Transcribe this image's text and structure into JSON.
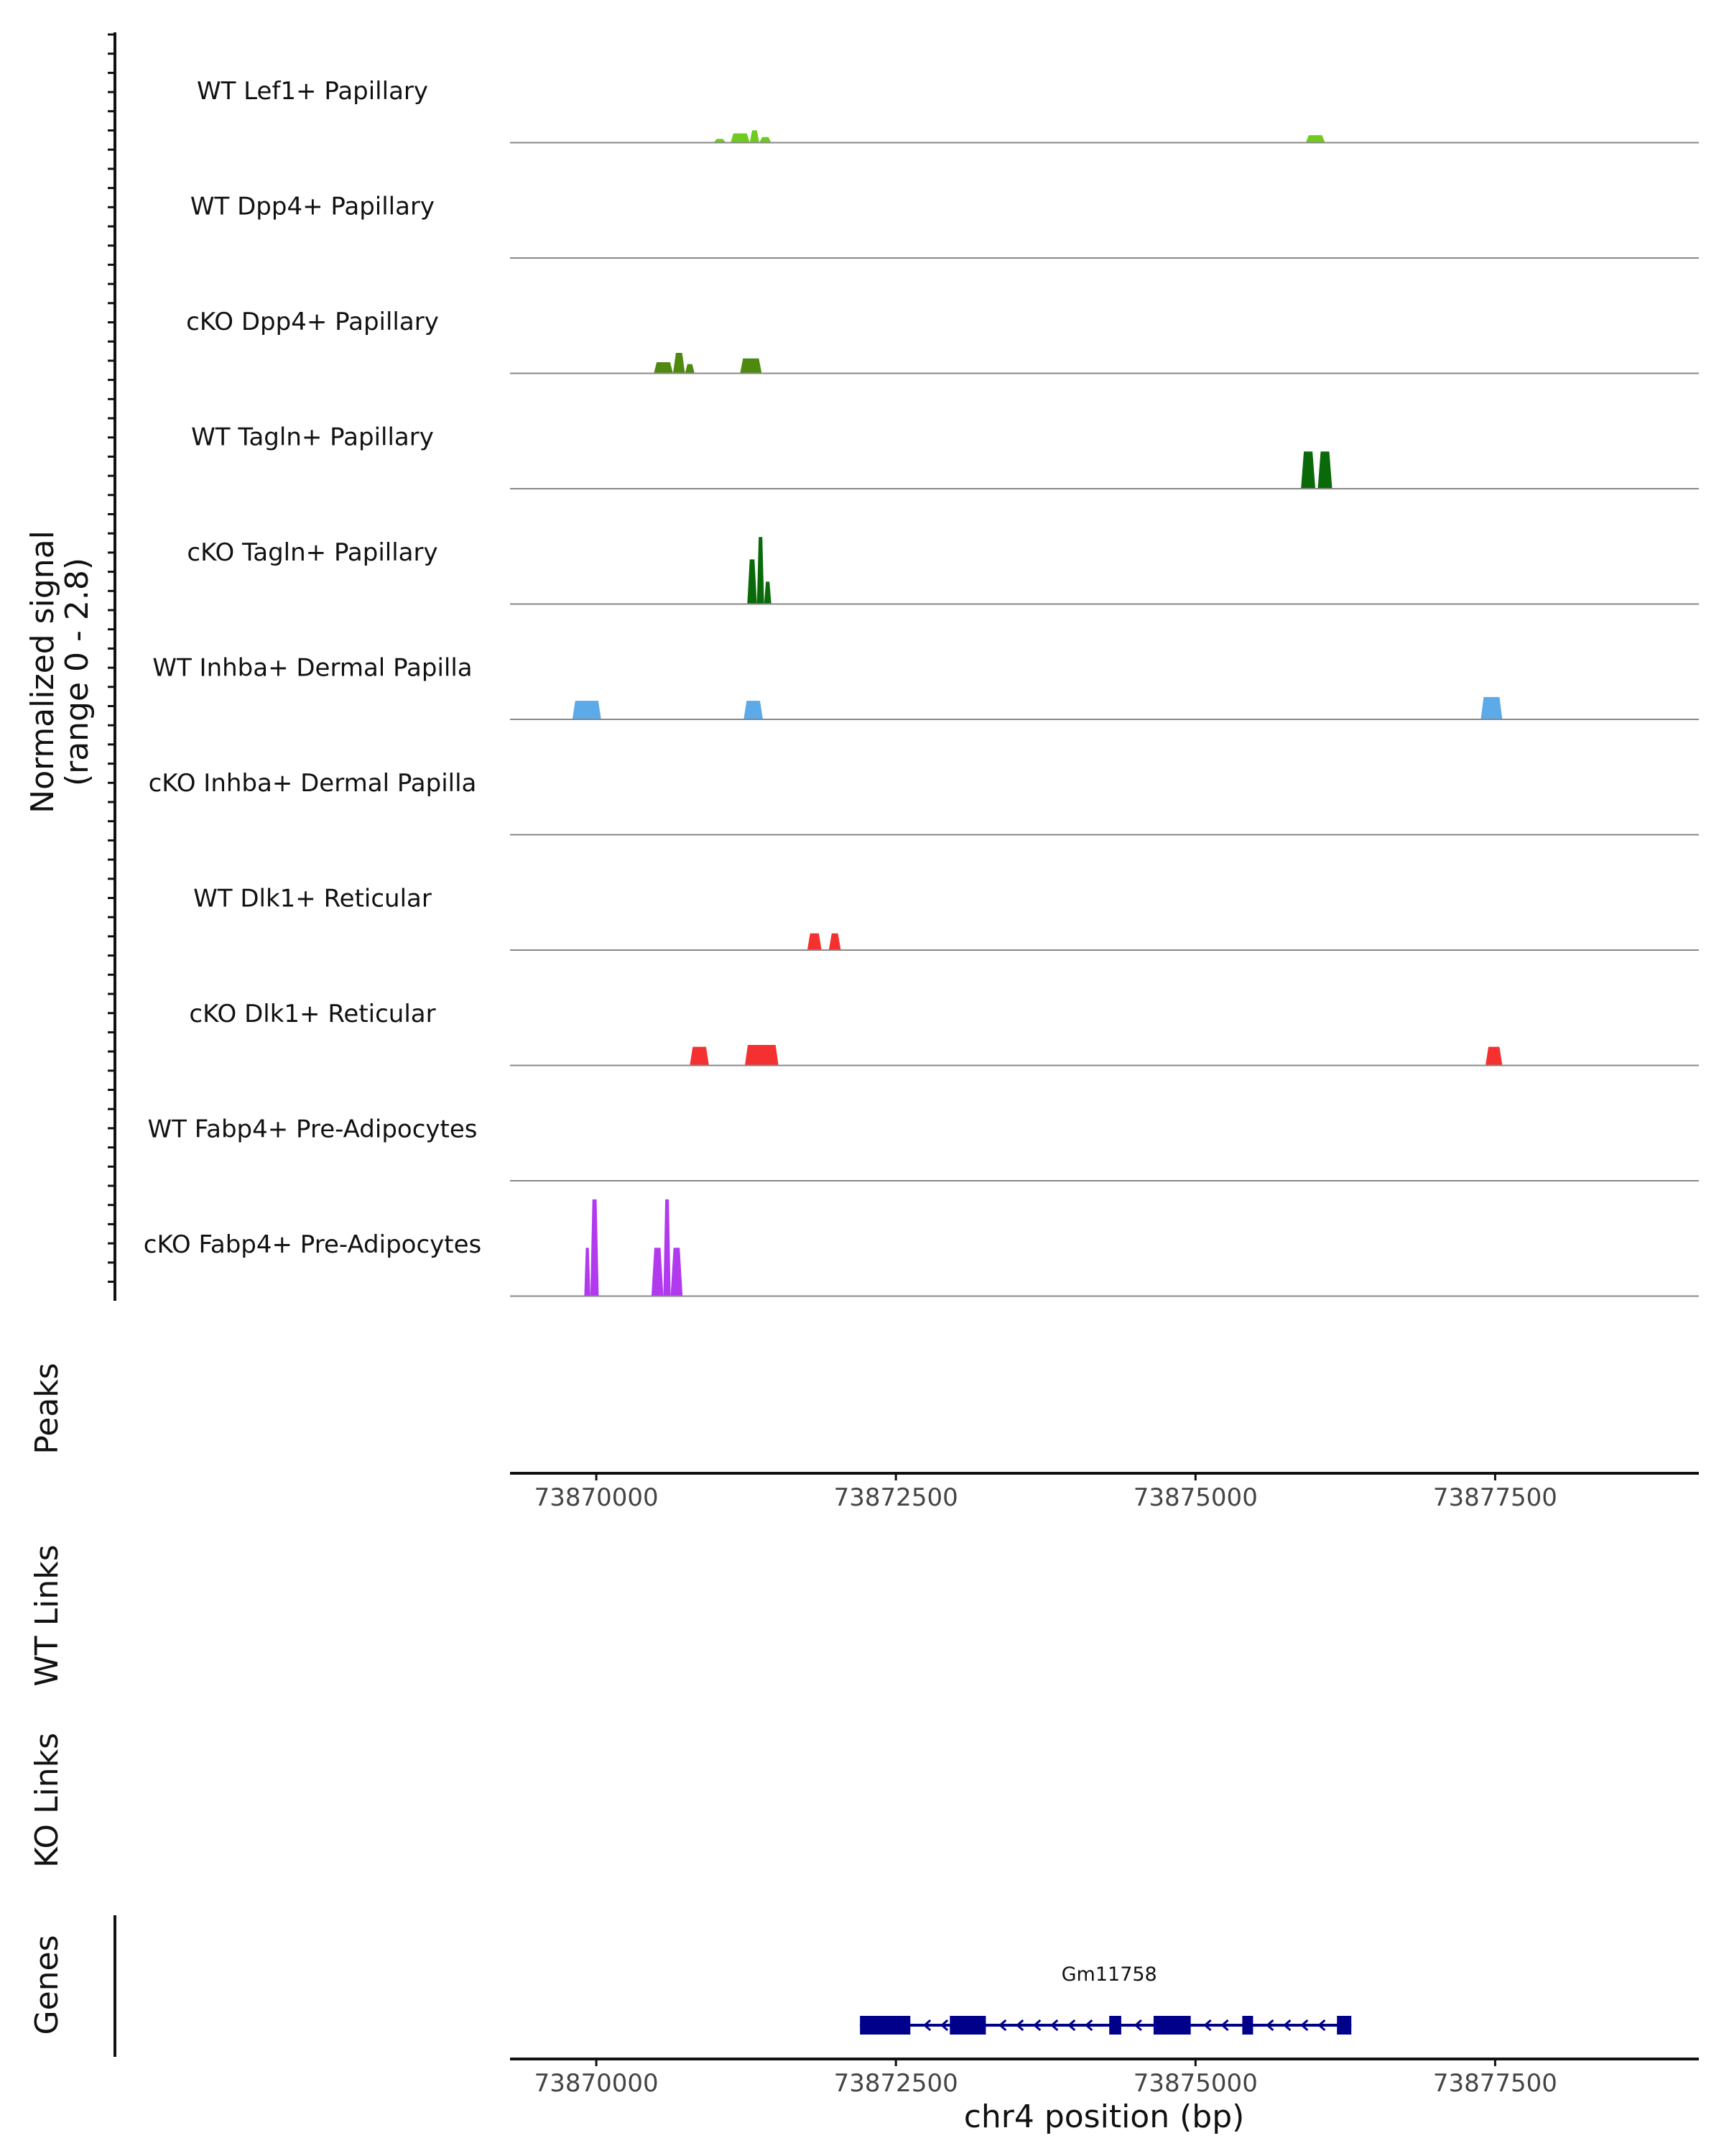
{
  "chart_data": {
    "type": "area",
    "subtype": "genome-coverage-tracks",
    "region": {
      "chromosome": "chr4",
      "start": 73869000,
      "end": 73877800
    },
    "coverage": {
      "ylabel_line1": "Normalized signal",
      "ylabel_line2": "(range 0 - 2.8)",
      "ylim": [
        0,
        2.8
      ],
      "tracks": [
        {
          "name": "WT Lef1+ Papillary",
          "color": "#6FCB1E",
          "peaks": [
            {
              "start": 73870980,
              "end": 73871080,
              "height": 0.1
            },
            {
              "start": 73871120,
              "end": 73871280,
              "height": 0.25
            },
            {
              "start": 73871280,
              "end": 73871360,
              "height": 0.33
            },
            {
              "start": 73871360,
              "end": 73871460,
              "height": 0.15
            },
            {
              "start": 73875920,
              "end": 73876080,
              "height": 0.2
            }
          ]
        },
        {
          "name": "WT Dpp4+ Papillary",
          "color": "#4F8A10",
          "peaks": []
        },
        {
          "name": "cKO Dpp4+ Papillary",
          "color": "#4F8A10",
          "peaks": [
            {
              "start": 73870480,
              "end": 73870640,
              "height": 0.3
            },
            {
              "start": 73870640,
              "end": 73870740,
              "height": 0.55
            },
            {
              "start": 73870740,
              "end": 73870820,
              "height": 0.25
            },
            {
              "start": 73871200,
              "end": 73871380,
              "height": 0.4
            }
          ]
        },
        {
          "name": "WT Tagln+ Papillary",
          "color": "#0A6A0A",
          "peaks": [
            {
              "start": 73875880,
              "end": 73876000,
              "height": 1.0
            },
            {
              "start": 73876020,
              "end": 73876140,
              "height": 1.0
            }
          ]
        },
        {
          "name": "cKO Tagln+ Papillary",
          "color": "#0A6A0A",
          "peaks": [
            {
              "start": 73871260,
              "end": 73871340,
              "height": 1.2
            },
            {
              "start": 73871340,
              "end": 73871400,
              "height": 1.8
            },
            {
              "start": 73871400,
              "end": 73871460,
              "height": 0.6
            }
          ]
        },
        {
          "name": "WT Inhba+ Dermal Papilla",
          "color": "#5DAAE8",
          "peaks": [
            {
              "start": 73869800,
              "end": 73870040,
              "height": 0.5
            },
            {
              "start": 73871230,
              "end": 73871390,
              "height": 0.5
            },
            {
              "start": 73877380,
              "end": 73877560,
              "height": 0.6
            }
          ]
        },
        {
          "name": "cKO Inhba+ Dermal Papilla",
          "color": "#5DAAE8",
          "peaks": []
        },
        {
          "name": "WT Dlk1+ Reticular",
          "color": "#F53030",
          "peaks": [
            {
              "start": 73871760,
              "end": 73871880,
              "height": 0.45
            },
            {
              "start": 73871940,
              "end": 73872040,
              "height": 0.45
            }
          ]
        },
        {
          "name": "cKO Dlk1+ Reticular",
          "color": "#F53030",
          "peaks": [
            {
              "start": 73870780,
              "end": 73870940,
              "height": 0.5
            },
            {
              "start": 73871240,
              "end": 73871520,
              "height": 0.55
            },
            {
              "start": 73877420,
              "end": 73877560,
              "height": 0.5
            }
          ]
        },
        {
          "name": "WT Fabp4+ Pre-Adipocytes",
          "color": "#B23AEE",
          "peaks": []
        },
        {
          "name": "cKO Fabp4+ Pre-Adipocytes",
          "color": "#B23AEE",
          "peaks": [
            {
              "start": 73869900,
              "end": 73869950,
              "height": 1.3
            },
            {
              "start": 73869950,
              "end": 73870020,
              "height": 2.6
            },
            {
              "start": 73870460,
              "end": 73870560,
              "height": 1.3
            },
            {
              "start": 73870560,
              "end": 73870620,
              "height": 2.6
            },
            {
              "start": 73870620,
              "end": 73870720,
              "height": 1.3
            }
          ]
        }
      ]
    },
    "peaks_track": {
      "label": "Peaks",
      "intervals": []
    },
    "xaxis": {
      "ticks": [
        73870000,
        73872500,
        73875000,
        73877500
      ],
      "tick_labels": [
        "73870000",
        "73872500",
        "73875000",
        "73877500"
      ]
    },
    "links_tracks": [
      {
        "label": "WT Links",
        "links": []
      },
      {
        "label": "KO Links",
        "links": []
      }
    ],
    "genes_track": {
      "label": "Genes",
      "genes": [
        {
          "name": "Gm11758",
          "strand": "-",
          "start": 73872200,
          "end": 73876300,
          "exons": [
            [
              73872200,
              73872620
            ],
            [
              73872950,
              73873250
            ],
            [
              73874280,
              73874380
            ],
            [
              73874650,
              73874960
            ],
            [
              73875390,
              73875480
            ],
            [
              73876180,
              73876300
            ]
          ]
        }
      ]
    },
    "xlabel": "chr4 position (bp)"
  }
}
